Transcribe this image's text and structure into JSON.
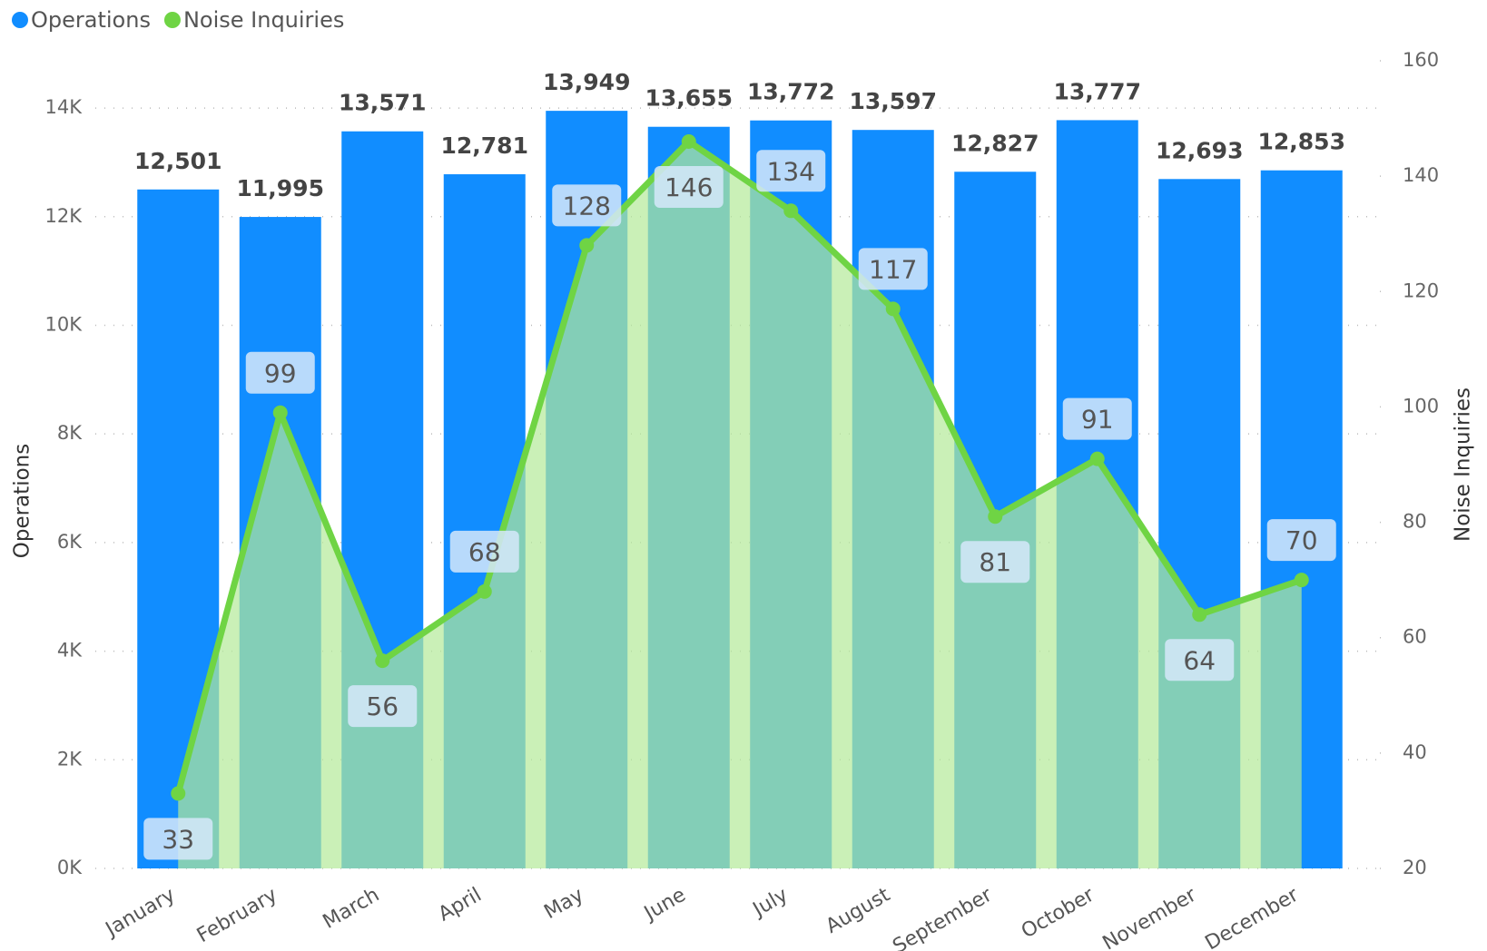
{
  "chart_data": {
    "type": "bar-line",
    "categories": [
      "January",
      "February",
      "March",
      "April",
      "May",
      "June",
      "July",
      "August",
      "September",
      "October",
      "November",
      "December"
    ],
    "series": [
      {
        "name": "Operations",
        "color": "#118dff",
        "type": "bar",
        "values": [
          12501,
          11995,
          13571,
          12781,
          13949,
          13655,
          13772,
          13597,
          12827,
          13777,
          12693,
          12853
        ],
        "value_labels": [
          "12,501",
          "11,995",
          "13,571",
          "12,781",
          "13,949",
          "13,655",
          "13,772",
          "13,597",
          "12,827",
          "13,777",
          "12,693",
          "12,853"
        ]
      },
      {
        "name": "Noise Inquiries",
        "color": "#6fd444",
        "type": "line",
        "axis": "y2",
        "values": [
          33,
          99,
          56,
          68,
          128,
          146,
          134,
          117,
          81,
          91,
          64,
          70
        ]
      }
    ],
    "ylabel": "Operations",
    "y2label": "Noise Inquiries",
    "ylim": [
      0,
      14870
    ],
    "yticks": [
      {
        "value": 0,
        "label": "0K"
      },
      {
        "value": 2000,
        "label": "2K"
      },
      {
        "value": 4000,
        "label": "4K"
      },
      {
        "value": 6000,
        "label": "6K"
      },
      {
        "value": 8000,
        "label": "8K"
      },
      {
        "value": 10000,
        "label": "10K"
      },
      {
        "value": 12000,
        "label": "12K"
      },
      {
        "value": 14000,
        "label": "14K"
      }
    ],
    "y2lim": [
      20,
      160
    ],
    "y2ticks": [
      20,
      40,
      60,
      80,
      100,
      120,
      140,
      160
    ],
    "grid": true,
    "legend": "top-left"
  }
}
